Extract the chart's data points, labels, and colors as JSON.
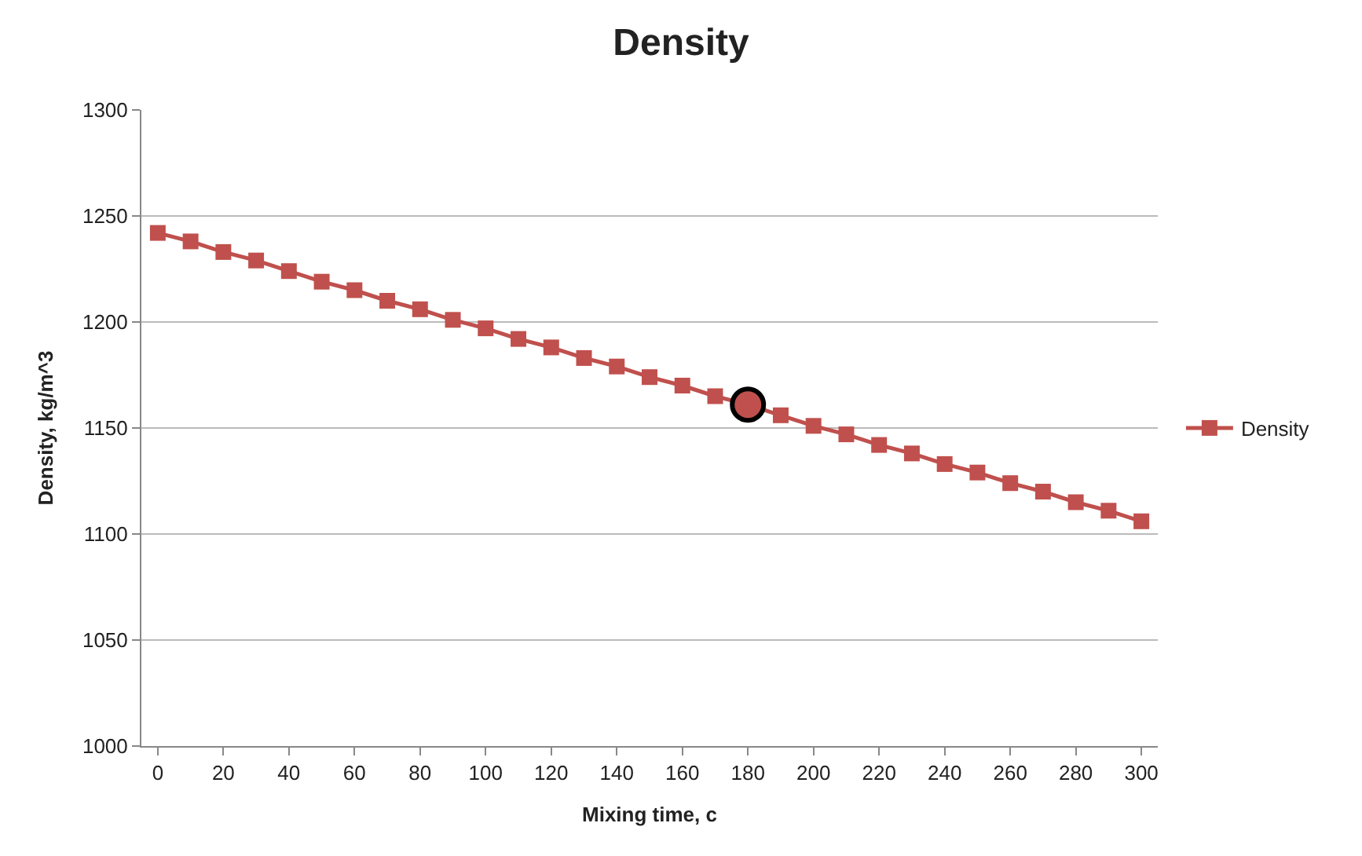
{
  "chart_data": {
    "type": "line",
    "title": "Density",
    "xlabel": "Mixing time, c",
    "ylabel": "Density, kg/m^3",
    "x": [
      0,
      10,
      20,
      30,
      40,
      50,
      60,
      70,
      80,
      90,
      100,
      110,
      120,
      130,
      140,
      150,
      160,
      170,
      180,
      190,
      200,
      210,
      220,
      230,
      240,
      250,
      260,
      270,
      280,
      290,
      300
    ],
    "series": [
      {
        "name": "Density",
        "color": "#c0504d",
        "marker": "square",
        "values": [
          1242,
          1238,
          1233,
          1229,
          1224,
          1219,
          1215,
          1210,
          1206,
          1201,
          1197,
          1192,
          1188,
          1183,
          1179,
          1174,
          1170,
          1165,
          1161,
          1156,
          1151,
          1147,
          1142,
          1138,
          1133,
          1129,
          1124,
          1120,
          1115,
          1111,
          1106
        ]
      },
      {
        "type": "scatter",
        "color": "#c0504d",
        "marker": "circle",
        "x": [
          180
        ],
        "values": [
          1161
        ]
      }
    ],
    "xlim": [
      -5,
      305
    ],
    "xticks": [
      0,
      20,
      40,
      60,
      80,
      100,
      120,
      140,
      160,
      180,
      200,
      220,
      240,
      260,
      280,
      300
    ],
    "ylim": [
      1000,
      1300
    ],
    "yticks": [
      1000,
      1050,
      1100,
      1150,
      1200,
      1250,
      1300
    ],
    "grid": "y",
    "legend": "right",
    "line_style": "solid"
  }
}
